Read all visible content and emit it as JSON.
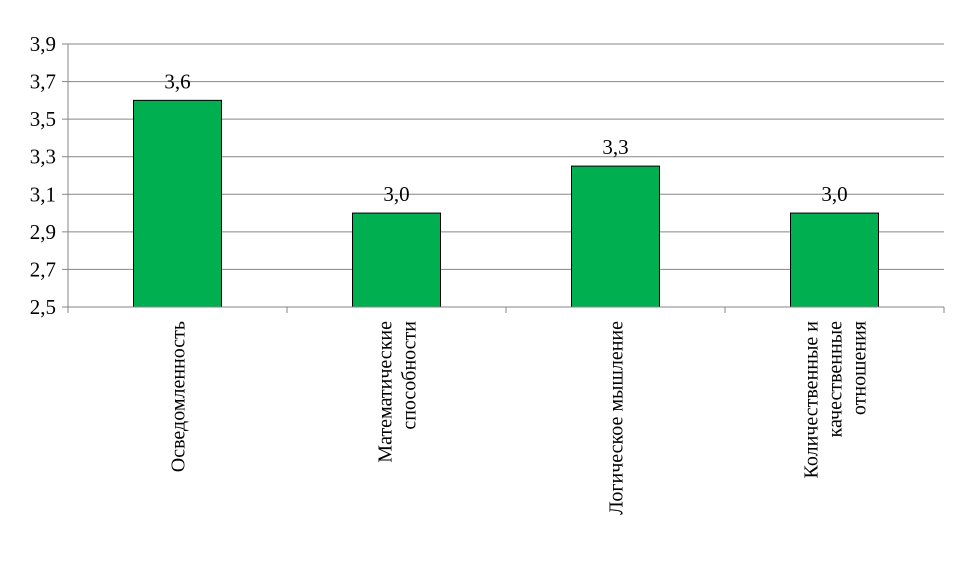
{
  "chart_data": {
    "type": "bar",
    "categories": [
      [
        "Осведомленность"
      ],
      [
        "Математические",
        "способности"
      ],
      [
        "Логическое мышление"
      ],
      [
        "Количественные и",
        "качественные",
        "отношения"
      ]
    ],
    "values": [
      3.6,
      3.0,
      3.25,
      3.0
    ],
    "data_labels": [
      "3,6",
      "3,0",
      "3,3",
      "3,0"
    ],
    "ylim": [
      2.5,
      3.9
    ],
    "yticks": [
      2.5,
      2.7,
      2.9,
      3.1,
      3.3,
      3.5,
      3.7,
      3.9
    ],
    "ytick_labels": [
      "2,5",
      "2,7",
      "2,9",
      "3,1",
      "3,3",
      "3,5",
      "3,7",
      "3,9"
    ],
    "grid": true,
    "title": "",
    "xlabel": "",
    "ylabel": "",
    "colors": {
      "bar": "#00b050",
      "bar_stroke": "#000000",
      "grid": "#868686",
      "axis": "#868686"
    }
  }
}
